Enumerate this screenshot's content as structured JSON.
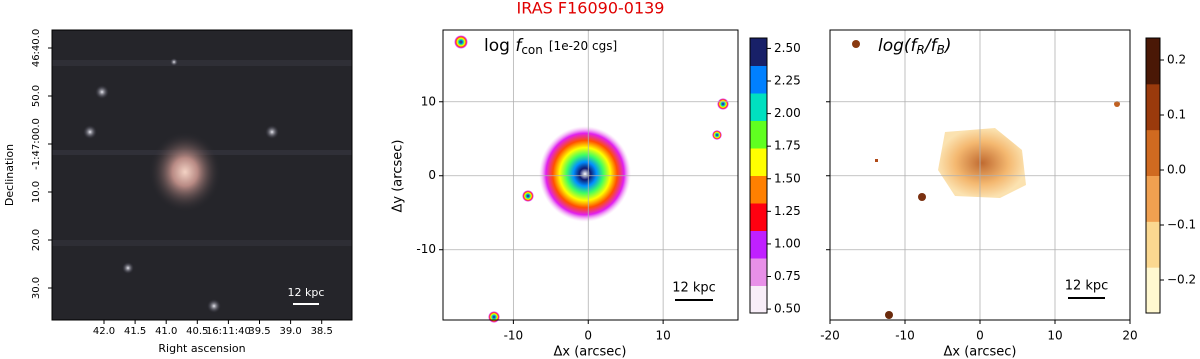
{
  "chart_data": [
    {
      "type": "sky-image",
      "xlabel": "Right ascension",
      "ylabel": "Declination",
      "xticks": [
        "42.0",
        "41.5",
        "41.0",
        "40.5",
        "16:11:40",
        "39.5",
        "39.0",
        "38.5"
      ],
      "yticks": [
        "46:40.0",
        "50.0",
        "-1:47:00.0",
        "10.0",
        "20.0",
        "30.0"
      ],
      "scale_bar": "12 kpc"
    },
    {
      "type": "map",
      "title": "IRAS F16090-0139",
      "xlabel": "Δx (arcsec)",
      "ylabel": "Δy (arcsec)",
      "annotation": [
        "log ",
        "f",
        "con",
        "[1e-20 cgs]"
      ],
      "xlim": [
        -19.4,
        20
      ],
      "ylim": [
        -19.5,
        19.7
      ],
      "xticks": [
        -10,
        0,
        10
      ],
      "yticks": [
        -10,
        0,
        10
      ],
      "show_ytick_labels": true,
      "grid": true,
      "clim": [
        0.47,
        2.58
      ],
      "cticks": [
        {
          "value": 0.5,
          "label": "0.50"
        },
        {
          "value": 0.75,
          "label": "0.75"
        },
        {
          "value": 1.0,
          "label": "1.00"
        },
        {
          "value": 1.25,
          "label": "1.25"
        },
        {
          "value": 1.5,
          "label": "1.50"
        },
        {
          "value": 1.75,
          "label": "1.75"
        },
        {
          "value": 2.0,
          "label": "2.00"
        },
        {
          "value": 2.25,
          "label": "2.25"
        },
        {
          "value": 2.5,
          "label": "2.50"
        }
      ],
      "colormap": [
        "#f8eef8",
        "#e890e8",
        "#c020ff",
        "#ff0010",
        "#ff8000",
        "#ffff00",
        "#60ff20",
        "#00e0c0",
        "#0080ff",
        "#182068"
      ],
      "scale_bar": "12 kpc"
    },
    {
      "type": "map",
      "xlabel": "Δx (arcsec)",
      "annotation": [
        "log(f",
        "R",
        "/f",
        "B",
        ")"
      ],
      "xlim": [
        -20,
        20
      ],
      "ylim": [
        -19.5,
        19.7
      ],
      "xticks": [
        -20,
        -10,
        0,
        10,
        20
      ],
      "yticks": [
        -10,
        0,
        10
      ],
      "show_ytick_labels": false,
      "grid": true,
      "clim": [
        -0.26,
        0.24
      ],
      "cticks": [
        {
          "value": 0.2,
          "label": "0.2"
        },
        {
          "value": 0.1,
          "label": "0.1"
        },
        {
          "value": 0.0,
          "label": "0.0"
        },
        {
          "value": -0.1,
          "label": "−0.1"
        },
        {
          "value": -0.2,
          "label": "−0.2"
        }
      ],
      "colormap": [
        "#fff8d0",
        "#fbd890",
        "#f0a050",
        "#d06a20",
        "#9a3a0c",
        "#4a1806"
      ],
      "scale_bar": "12 kpc"
    }
  ]
}
